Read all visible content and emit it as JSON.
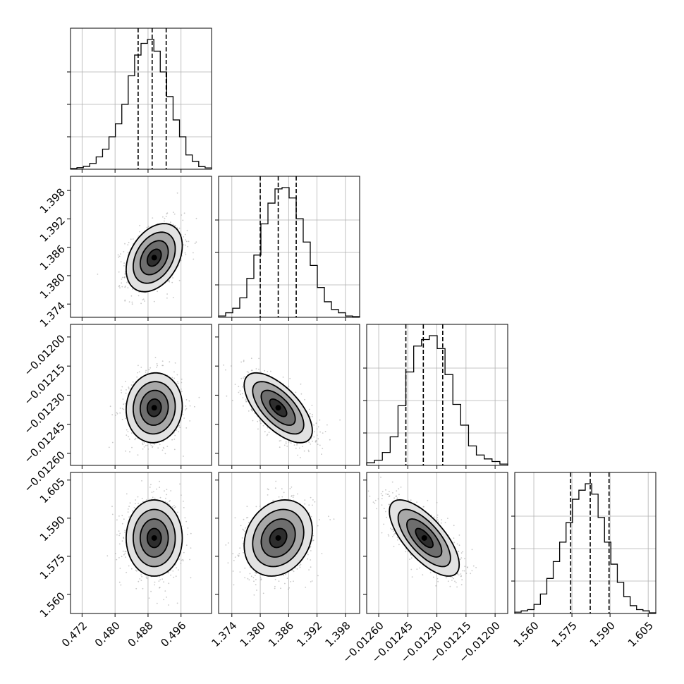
{
  "chart_data": {
    "type": "corner",
    "grid": true,
    "legend": "none",
    "colors": {
      "line": "#000000",
      "grid": "#b0b0b0",
      "scatter": "#9a9a9a",
      "frame": "#000000"
    },
    "parameters": [
      {
        "range": [
          0.4692,
          0.5034
        ],
        "ticks": [
          0.472,
          0.48,
          0.488,
          0.496
        ],
        "tick_labels": [
          "0.472",
          "0.480",
          "0.488",
          "0.496"
        ],
        "quantiles": [
          0.4856,
          0.489,
          0.4924
        ],
        "mean": 0.4895,
        "sigma": 0.0034,
        "hist_counts": [
          0.005,
          0.012,
          0.022,
          0.045,
          0.095,
          0.155,
          0.25,
          0.35,
          0.5,
          0.72,
          0.88,
          0.97,
          1.0,
          0.91,
          0.75,
          0.56,
          0.38,
          0.25,
          0.11,
          0.06,
          0.02,
          0.01
        ]
      },
      {
        "range": [
          1.3712,
          1.401
        ],
        "ticks": [
          1.374,
          1.38,
          1.386,
          1.392,
          1.398
        ],
        "tick_labels": [
          "1.374",
          "1.380",
          "1.386",
          "1.392",
          "1.398"
        ],
        "quantiles": [
          1.38,
          1.3838,
          1.3876
        ],
        "mean": 1.3838,
        "sigma": 0.0036,
        "hist_counts": [
          0.01,
          0.035,
          0.07,
          0.15,
          0.3,
          0.48,
          0.72,
          0.88,
          0.99,
          1.0,
          0.92,
          0.76,
          0.58,
          0.4,
          0.23,
          0.12,
          0.06,
          0.035,
          0.01,
          0.005
        ]
      },
      {
        "range": [
          -0.012662,
          -0.011935
        ],
        "ticks": [
          -0.0126,
          -0.01245,
          -0.0123,
          -0.01215,
          -0.012
        ],
        "tick_labels": [
          "−0.01260",
          "−0.01245",
          "−0.01230",
          "−0.01215",
          "−0.01200"
        ],
        "quantiles": [
          -0.01246,
          -0.01237,
          -0.01227
        ],
        "mean": -0.012365,
        "sigma": 9e-05,
        "hist_counts": [
          0.02,
          0.04,
          0.1,
          0.22,
          0.46,
          0.72,
          0.92,
          0.97,
          1.0,
          0.9,
          0.7,
          0.47,
          0.31,
          0.15,
          0.08,
          0.05,
          0.03,
          0.01
        ]
      },
      {
        "range": [
          1.5525,
          1.608
        ],
        "ticks": [
          1.56,
          1.575,
          1.59,
          1.605
        ],
        "tick_labels": [
          "1.560",
          "1.575",
          "1.590",
          "1.605"
        ],
        "quantiles": [
          1.5745,
          1.5822,
          1.5896
        ],
        "mean": 1.5822,
        "sigma": 0.0075,
        "hist_counts": [
          0.01,
          0.02,
          0.03,
          0.07,
          0.15,
          0.27,
          0.4,
          0.55,
          0.7,
          0.88,
          0.95,
          1.0,
          0.92,
          0.74,
          0.55,
          0.38,
          0.24,
          0.13,
          0.06,
          0.03,
          0.02,
          0.005
        ]
      }
    ],
    "correlations": {
      "1-0": 0.35,
      "2-0": 0.05,
      "2-1": -0.65,
      "3-0": 0.0,
      "3-1": 0.2,
      "3-2": -0.7
    },
    "contour_sigma_levels": [
      0.5,
      1.0,
      1.5,
      2.0
    ]
  }
}
